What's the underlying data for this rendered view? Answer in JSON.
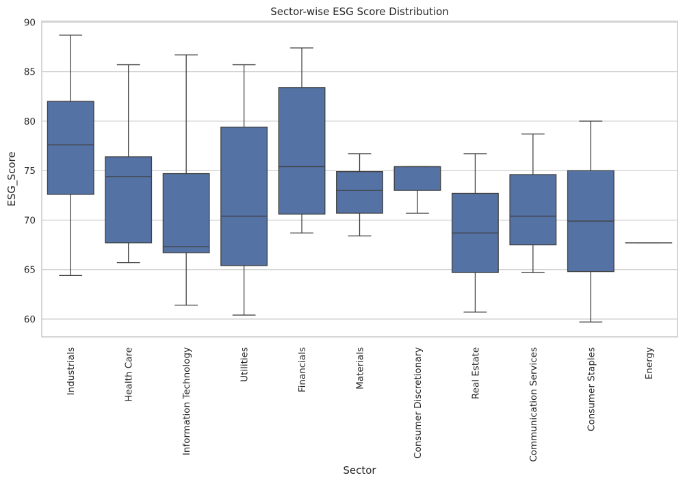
{
  "chart_data": {
    "type": "box",
    "title": "Sector-wise ESG Score Distribution",
    "xlabel": "Sector",
    "ylabel": "ESG_Score",
    "ylim": [
      58.2,
      90.1
    ],
    "yticks": [
      60,
      65,
      70,
      75,
      80,
      85,
      90
    ],
    "grid": true,
    "box_color": "#5572a5",
    "line_color": "#3f3f3f",
    "categories": [
      "Industrials",
      "Health Care",
      "Information Technology",
      "Utilities",
      "Financials",
      "Materials",
      "Consumer Discretionary",
      "Real Estate",
      "Communication Services",
      "Consumer Staples",
      "Energy"
    ],
    "boxes": [
      {
        "min": 64.4,
        "q1": 72.6,
        "median": 77.6,
        "q3": 82.0,
        "max": 88.7
      },
      {
        "min": 65.7,
        "q1": 67.7,
        "median": 74.4,
        "q3": 76.4,
        "max": 85.7
      },
      {
        "min": 61.4,
        "q1": 66.7,
        "median": 67.3,
        "q3": 74.7,
        "max": 86.7
      },
      {
        "min": 60.4,
        "q1": 65.4,
        "median": 70.4,
        "q3": 79.4,
        "max": 85.7
      },
      {
        "min": 68.7,
        "q1": 70.6,
        "median": 75.4,
        "q3": 83.4,
        "max": 87.4
      },
      {
        "min": 68.4,
        "q1": 70.7,
        "median": 73.0,
        "q3": 74.9,
        "max": 76.7
      },
      {
        "min": 70.7,
        "q1": 73.0,
        "median": 75.4,
        "q3": 75.4,
        "max": 75.4
      },
      {
        "min": 60.7,
        "q1": 64.7,
        "median": 68.7,
        "q3": 72.7,
        "max": 76.7
      },
      {
        "min": 64.7,
        "q1": 67.5,
        "median": 70.4,
        "q3": 74.6,
        "max": 78.7
      },
      {
        "min": 59.7,
        "q1": 64.8,
        "median": 69.9,
        "q3": 75.0,
        "max": 80.0
      },
      {
        "min": 67.7,
        "q1": 67.7,
        "median": 67.7,
        "q3": 67.7,
        "max": 67.7
      }
    ]
  }
}
